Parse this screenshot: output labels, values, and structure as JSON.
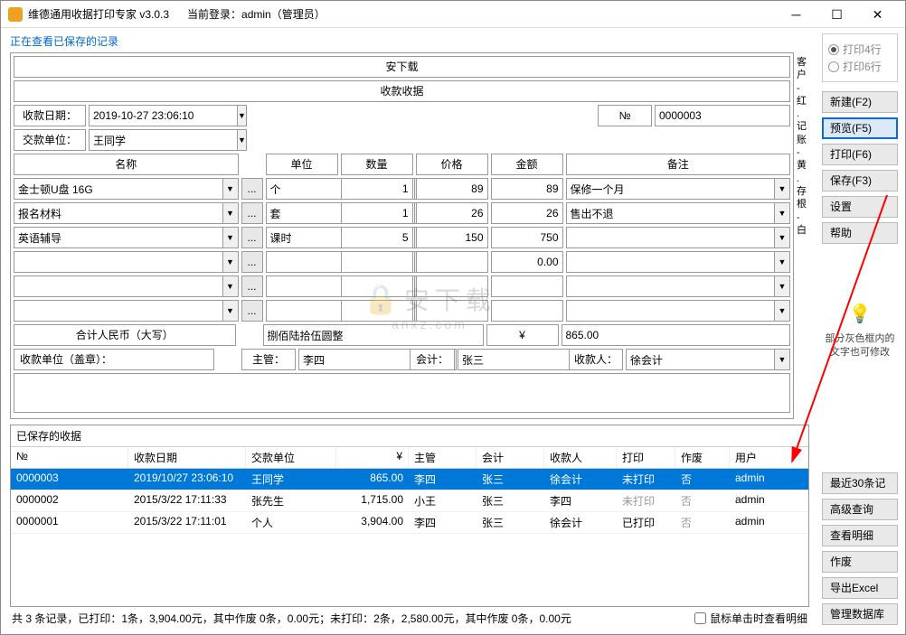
{
  "window": {
    "title": "维德通用收据打印专家 v3.0.3",
    "login": "当前登录：admin（管理员）"
  },
  "status_line": "正在查看已保存的记录",
  "header1": "安下载",
  "header2": "收款收据",
  "labels": {
    "date": "收款日期：",
    "payer": "交款单位：",
    "no": "№",
    "name": "名称",
    "unit": "单位",
    "qty": "数量",
    "price": "价格",
    "amount": "金额",
    "remark": "备注",
    "total_cn": "合计人民币（大写）",
    "currency": "¥",
    "payee_unit": "收款单位（盖章）：",
    "mgr": "主管：",
    "acc": "会计：",
    "recv": "收款人："
  },
  "fields": {
    "date": "2019-10-27 23:06:10",
    "payer": "王同学",
    "no": "0000003",
    "total_cn_val": "捌佰陆拾伍圆整",
    "total_num": "865.00",
    "mgr_val": "李四",
    "acc_val": "张三",
    "recv_val": "徐会计"
  },
  "items": [
    {
      "name": "金士顿U盘 16G",
      "unit": "个",
      "qty": "1",
      "price": "89",
      "amount": "89",
      "remark": "保修一个月"
    },
    {
      "name": "报名材料",
      "unit": "套",
      "qty": "1",
      "price": "26",
      "amount": "26",
      "remark": "售出不退"
    },
    {
      "name": "英语辅导",
      "unit": "课时",
      "qty": "5",
      "price": "150",
      "amount": "750",
      "remark": ""
    },
    {
      "name": "",
      "unit": "",
      "qty": "",
      "price": "",
      "amount": "0.00",
      "remark": ""
    },
    {
      "name": "",
      "unit": "",
      "qty": "",
      "price": "",
      "amount": "",
      "remark": ""
    },
    {
      "name": "",
      "unit": "",
      "qty": "",
      "price": "",
      "amount": "",
      "remark": ""
    }
  ],
  "sidetext": "客户 - 红 . 记账 - 黄 . 存根 - 白",
  "grid": {
    "title": "已保存的收据",
    "cols": {
      "no": "№",
      "date": "收款日期",
      "unit": "交款单位",
      "amt": "¥",
      "mgr": "主管",
      "acc": "会计",
      "recv": "收款人",
      "prn": "打印",
      "void": "作废",
      "user": "用户"
    },
    "rows": [
      {
        "no": "0000003",
        "date": "2019/10/27 23:06:10",
        "unit": "王同学",
        "amt": "865.00",
        "mgr": "李四",
        "acc": "张三",
        "recv": "徐会计",
        "prn": "未打印",
        "void": "否",
        "user": "admin",
        "sel": true,
        "prn_gray": false
      },
      {
        "no": "0000002",
        "date": "2015/3/22 17:11:33",
        "unit": "张先生",
        "amt": "1,715.00",
        "mgr": "小王",
        "acc": "张三",
        "recv": "李四",
        "prn": "未打印",
        "void": "否",
        "user": "admin",
        "sel": false,
        "prn_gray": true
      },
      {
        "no": "0000001",
        "date": "2015/3/22 17:11:01",
        "unit": "个人",
        "amt": "3,904.00",
        "mgr": "李四",
        "acc": "张三",
        "recv": "徐会计",
        "prn": "已打印",
        "void": "否",
        "user": "admin",
        "sel": false,
        "prn_gray": false
      }
    ]
  },
  "bottom_status": "共 3 条记录，已打印：1条，3,904.00元，其中作废 0条，0.00元；未打印：2条，2,580.00元，其中作废 0条，0.00元",
  "bottom_chk": "鼠标单击时查看明细",
  "right": {
    "radio4": "打印4行",
    "radio6": "打印6行",
    "new": "新建(F2)",
    "preview": "预览(F5)",
    "print": "打印(F6)",
    "save": "保存(F3)",
    "settings": "设置",
    "help": "帮助",
    "hint": "部分灰色框内的文字也可修改",
    "recent": "最近30条记 ▾",
    "adv": "高级查询",
    "view": "查看明细",
    "void": "作废",
    "excel": "导出Excel",
    "mgmt": "管理数据库"
  },
  "colors": {
    "accent": "#0078d7",
    "arrow": "#ff0000"
  },
  "watermark": {
    "main": "安下载",
    "sub": "anxz.com"
  }
}
